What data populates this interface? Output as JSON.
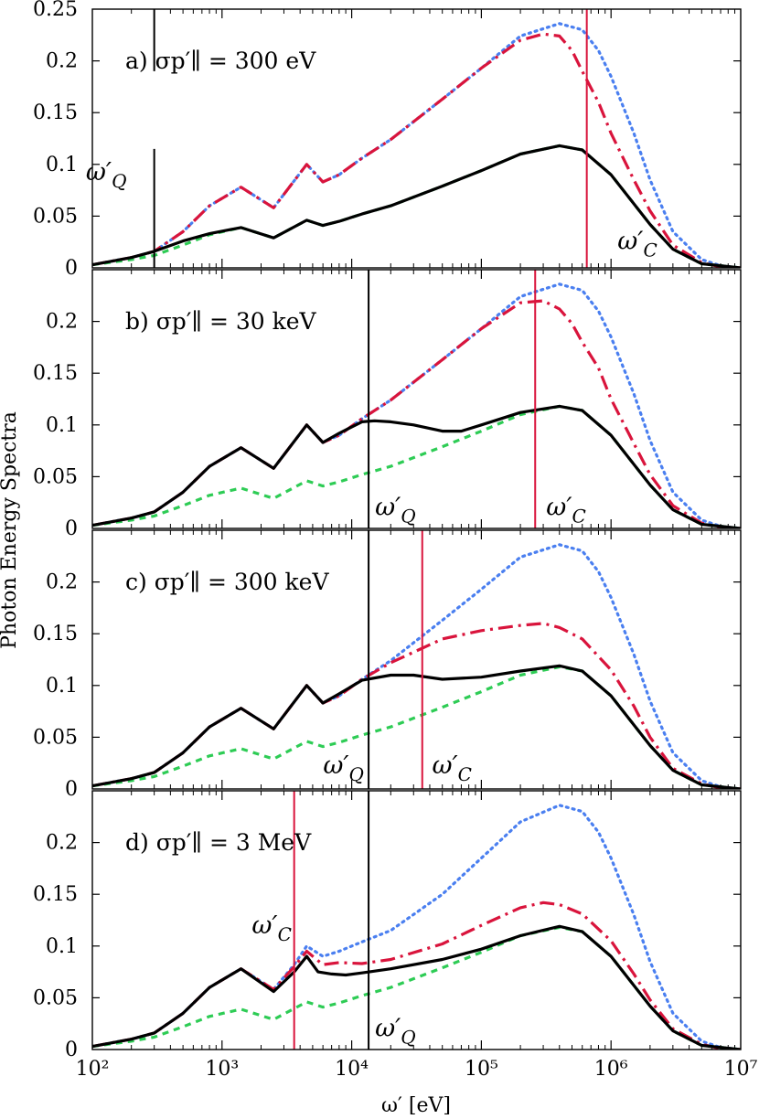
{
  "figure": {
    "ylabel": "Photon Energy Spectra",
    "xlabel": "ω′ [eV]"
  },
  "colors": {
    "black_solid": "#000000",
    "green_dashed": "#2ecc55",
    "blue_dotted": "#4a7ff0",
    "red_dashdot": "#d9143c",
    "omega_Q_line": "#000000",
    "omega_C_line": "#d9143c"
  },
  "chart_data": [
    {
      "type": "line",
      "panel_label": "a) σp′∥ = 300 eV",
      "xscale": "log",
      "xlim": [
        100,
        10000000
      ],
      "ylim": [
        0,
        0.25
      ],
      "yticks": [
        "0",
        "0.05",
        "0.1",
        "0.15",
        "0.2",
        "0.25"
      ],
      "xticks": [
        "10²",
        "10³",
        "10⁴",
        "10⁵",
        "10⁶",
        "10⁷"
      ],
      "omega_Q": 300,
      "omega_C": 650000,
      "omega_Q_label": "ω′Q",
      "omega_C_label": "ω′C",
      "omega_Q_label_pos": [
        1.95,
        0.085
      ],
      "omega_C_label_pos": [
        6.05,
        0.018
      ],
      "omega_Q_line_range": [
        0,
        0.25
      ],
      "label_gap": [
        0.19,
        0.115
      ],
      "series": [
        {
          "style": "blue_dotted",
          "x": [
            100,
            200,
            300,
            500,
            800,
            1400,
            2500,
            4500,
            6000,
            8000,
            12000,
            20000,
            50000,
            100000,
            200000,
            400000,
            600000,
            800000,
            1000000,
            1500000,
            2000000,
            3000000,
            5000000,
            7000000,
            10000000
          ],
          "y": [
            0.003,
            0.01,
            0.016,
            0.035,
            0.06,
            0.078,
            0.058,
            0.1,
            0.083,
            0.09,
            0.106,
            0.124,
            0.163,
            0.193,
            0.224,
            0.236,
            0.23,
            0.21,
            0.185,
            0.13,
            0.085,
            0.035,
            0.008,
            0.002,
            0.0
          ]
        },
        {
          "style": "red_dashdot",
          "x": [
            100,
            200,
            300,
            500,
            800,
            1400,
            2500,
            4500,
            6000,
            8000,
            12000,
            20000,
            50000,
            100000,
            200000,
            300000,
            400000,
            500000,
            600000,
            800000,
            1000000,
            1500000,
            2000000,
            3000000,
            5000000,
            7000000,
            10000000
          ],
          "y": [
            0.003,
            0.01,
            0.016,
            0.035,
            0.06,
            0.078,
            0.058,
            0.1,
            0.083,
            0.09,
            0.106,
            0.124,
            0.163,
            0.193,
            0.22,
            0.226,
            0.224,
            0.21,
            0.19,
            0.16,
            0.13,
            0.085,
            0.055,
            0.022,
            0.005,
            0.001,
            0.0
          ]
        },
        {
          "style": "green_dashed",
          "x": [
            100,
            200,
            300,
            500,
            800,
            1400,
            2500,
            4500,
            6000,
            8000,
            12000,
            20000,
            50000,
            100000,
            200000,
            400000,
            600000,
            1000000,
            2000000,
            3000000,
            5000000,
            10000000
          ],
          "y": [
            0.003,
            0.008,
            0.012,
            0.022,
            0.032,
            0.039,
            0.029,
            0.046,
            0.041,
            0.045,
            0.052,
            0.06,
            0.079,
            0.094,
            0.11,
            0.118,
            0.114,
            0.09,
            0.042,
            0.018,
            0.004,
            0.0
          ]
        },
        {
          "style": "black_solid",
          "x": [
            100,
            200,
            300,
            500,
            800,
            1400,
            2500,
            4500,
            6000,
            8000,
            12000,
            20000,
            50000,
            100000,
            200000,
            400000,
            600000,
            1000000,
            2000000,
            3000000,
            5000000,
            10000000
          ],
          "y": [
            0.003,
            0.01,
            0.016,
            0.026,
            0.033,
            0.039,
            0.029,
            0.046,
            0.041,
            0.045,
            0.052,
            0.06,
            0.079,
            0.094,
            0.11,
            0.118,
            0.114,
            0.09,
            0.042,
            0.018,
            0.004,
            0.0
          ]
        }
      ]
    },
    {
      "type": "line",
      "panel_label": "b) σp′∥ = 30 keV",
      "xscale": "log",
      "xlim": [
        100,
        10000000
      ],
      "ylim": [
        0,
        0.25
      ],
      "yticks": [
        "0",
        "0.05",
        "0.1",
        "0.15",
        "0.2",
        ""
      ],
      "omega_Q": 13500,
      "omega_C": 260000,
      "omega_Q_label": "ω′Q",
      "omega_C_label": "ω′C",
      "omega_Q_label_pos": [
        4.18,
        0.013
      ],
      "omega_C_label_pos": [
        5.5,
        0.013
      ],
      "omega_Q_line_range": [
        0,
        0.25
      ],
      "label_gap": null,
      "series": [
        {
          "style": "blue_dotted",
          "x": [
            100,
            200,
            300,
            500,
            800,
            1400,
            2500,
            4500,
            6000,
            8000,
            12000,
            20000,
            50000,
            100000,
            200000,
            400000,
            600000,
            800000,
            1000000,
            1500000,
            2000000,
            3000000,
            5000000,
            7000000,
            10000000
          ],
          "y": [
            0.003,
            0.01,
            0.016,
            0.035,
            0.06,
            0.078,
            0.058,
            0.1,
            0.083,
            0.09,
            0.106,
            0.124,
            0.163,
            0.193,
            0.224,
            0.236,
            0.23,
            0.21,
            0.185,
            0.13,
            0.085,
            0.035,
            0.008,
            0.002,
            0.0
          ]
        },
        {
          "style": "red_dashdot",
          "x": [
            100,
            200,
            300,
            500,
            800,
            1400,
            2500,
            4500,
            6000,
            8000,
            12000,
            20000,
            50000,
            100000,
            200000,
            300000,
            400000,
            500000,
            600000,
            800000,
            1000000,
            1500000,
            2000000,
            3000000,
            5000000,
            7000000,
            10000000
          ],
          "y": [
            0.003,
            0.01,
            0.016,
            0.035,
            0.06,
            0.078,
            0.058,
            0.1,
            0.083,
            0.09,
            0.106,
            0.124,
            0.163,
            0.193,
            0.218,
            0.22,
            0.212,
            0.198,
            0.18,
            0.155,
            0.125,
            0.082,
            0.052,
            0.022,
            0.005,
            0.001,
            0.0
          ]
        },
        {
          "style": "green_dashed",
          "x": [
            100,
            200,
            300,
            500,
            800,
            1400,
            2500,
            4500,
            6000,
            8000,
            12000,
            20000,
            50000,
            100000,
            200000,
            400000,
            600000,
            1000000,
            2000000,
            3000000,
            5000000,
            10000000
          ],
          "y": [
            0.003,
            0.008,
            0.012,
            0.022,
            0.032,
            0.039,
            0.029,
            0.046,
            0.041,
            0.045,
            0.052,
            0.06,
            0.079,
            0.094,
            0.11,
            0.118,
            0.114,
            0.09,
            0.042,
            0.018,
            0.004,
            0.0
          ]
        },
        {
          "style": "black_solid",
          "x": [
            100,
            200,
            300,
            500,
            800,
            1400,
            2500,
            4500,
            6000,
            8000,
            12000,
            15000,
            20000,
            30000,
            50000,
            70000,
            100000,
            200000,
            400000,
            600000,
            1000000,
            2000000,
            3000000,
            5000000,
            10000000
          ],
          "y": [
            0.003,
            0.01,
            0.016,
            0.035,
            0.06,
            0.078,
            0.058,
            0.1,
            0.083,
            0.092,
            0.103,
            0.104,
            0.103,
            0.1,
            0.094,
            0.094,
            0.1,
            0.112,
            0.118,
            0.114,
            0.09,
            0.042,
            0.018,
            0.004,
            0.0
          ]
        }
      ]
    },
    {
      "type": "line",
      "panel_label": "c) σp′∥ = 300 keV",
      "xscale": "log",
      "xlim": [
        100,
        10000000
      ],
      "ylim": [
        0,
        0.25
      ],
      "yticks": [
        "0",
        "0.05",
        "0.1",
        "0.15",
        "0.2",
        ""
      ],
      "omega_Q": 13500,
      "omega_C": 35000,
      "omega_Q_label": "ω′Q",
      "omega_C_label": "ω′C",
      "omega_Q_label_pos": [
        3.78,
        0.015
      ],
      "omega_C_label_pos": [
        4.62,
        0.015
      ],
      "omega_Q_line_range": [
        0,
        0.25
      ],
      "label_gap": null,
      "series": [
        {
          "style": "blue_dotted",
          "x": [
            100,
            200,
            300,
            500,
            800,
            1400,
            2500,
            4500,
            6000,
            8000,
            12000,
            20000,
            50000,
            100000,
            200000,
            400000,
            600000,
            800000,
            1000000,
            1500000,
            2000000,
            3000000,
            5000000,
            7000000,
            10000000
          ],
          "y": [
            0.003,
            0.01,
            0.016,
            0.035,
            0.06,
            0.078,
            0.058,
            0.1,
            0.083,
            0.09,
            0.106,
            0.124,
            0.163,
            0.193,
            0.224,
            0.236,
            0.23,
            0.21,
            0.185,
            0.13,
            0.085,
            0.035,
            0.008,
            0.002,
            0.0
          ]
        },
        {
          "style": "red_dashdot",
          "x": [
            100,
            200,
            300,
            500,
            800,
            1400,
            2500,
            4500,
            6000,
            8000,
            12000,
            20000,
            50000,
            100000,
            200000,
            300000,
            400000,
            600000,
            1000000,
            1500000,
            2000000,
            3000000,
            5000000,
            7000000,
            10000000
          ],
          "y": [
            0.003,
            0.01,
            0.016,
            0.035,
            0.06,
            0.078,
            0.058,
            0.1,
            0.083,
            0.09,
            0.106,
            0.122,
            0.145,
            0.153,
            0.158,
            0.16,
            0.156,
            0.145,
            0.115,
            0.08,
            0.05,
            0.02,
            0.005,
            0.001,
            0.0
          ]
        },
        {
          "style": "green_dashed",
          "x": [
            100,
            200,
            300,
            500,
            800,
            1400,
            2500,
            4500,
            6000,
            8000,
            12000,
            20000,
            50000,
            100000,
            200000,
            400000,
            600000,
            1000000,
            2000000,
            3000000,
            5000000,
            10000000
          ],
          "y": [
            0.003,
            0.008,
            0.012,
            0.022,
            0.032,
            0.039,
            0.029,
            0.046,
            0.041,
            0.045,
            0.052,
            0.06,
            0.079,
            0.094,
            0.11,
            0.118,
            0.114,
            0.09,
            0.042,
            0.018,
            0.004,
            0.0
          ]
        },
        {
          "style": "black_solid",
          "x": [
            100,
            200,
            300,
            500,
            800,
            1400,
            2500,
            4500,
            6000,
            8000,
            12000,
            20000,
            30000,
            50000,
            70000,
            100000,
            200000,
            400000,
            600000,
            1000000,
            2000000,
            3000000,
            5000000,
            10000000
          ],
          "y": [
            0.003,
            0.01,
            0.016,
            0.035,
            0.06,
            0.078,
            0.058,
            0.1,
            0.083,
            0.092,
            0.105,
            0.11,
            0.11,
            0.106,
            0.107,
            0.108,
            0.114,
            0.119,
            0.114,
            0.09,
            0.042,
            0.018,
            0.004,
            0.0
          ]
        }
      ]
    },
    {
      "type": "line",
      "panel_label": "d) σp′∥ = 3 MeV",
      "xscale": "log",
      "xlim": [
        100,
        10000000
      ],
      "ylim": [
        0,
        0.25
      ],
      "yticks": [
        "0",
        "0.05",
        "0.1",
        "0.15",
        "0.2",
        ""
      ],
      "xticks": [
        "10²",
        "10³",
        "10⁴",
        "10⁵",
        "10⁶",
        "10⁷"
      ],
      "omega_Q": 13500,
      "omega_C": 3600,
      "omega_Q_label": "ω′Q",
      "omega_C_label": "ω′C",
      "omega_Q_label_pos": [
        4.18,
        0.013
      ],
      "omega_C_label_pos": [
        3.23,
        0.112
      ],
      "omega_Q_line_range": [
        0,
        0.25
      ],
      "label_gap": null,
      "series": [
        {
          "style": "blue_dotted",
          "x": [
            100,
            200,
            300,
            500,
            800,
            1400,
            2500,
            3600,
            4500,
            6000,
            8000,
            12000,
            20000,
            50000,
            100000,
            200000,
            400000,
            600000,
            800000,
            1000000,
            1500000,
            2000000,
            3000000,
            5000000,
            7000000,
            10000000
          ],
          "y": [
            0.003,
            0.01,
            0.016,
            0.035,
            0.06,
            0.078,
            0.058,
            0.082,
            0.1,
            0.09,
            0.095,
            0.104,
            0.115,
            0.15,
            0.185,
            0.22,
            0.236,
            0.23,
            0.21,
            0.185,
            0.13,
            0.085,
            0.035,
            0.008,
            0.002,
            0.0
          ]
        },
        {
          "style": "red_dashdot",
          "x": [
            100,
            200,
            300,
            500,
            800,
            1400,
            2500,
            3600,
            4500,
            6000,
            8000,
            12000,
            20000,
            50000,
            100000,
            200000,
            300000,
            400000,
            600000,
            1000000,
            1500000,
            2000000,
            3000000,
            5000000,
            7000000,
            10000000
          ],
          "y": [
            0.003,
            0.01,
            0.016,
            0.035,
            0.06,
            0.078,
            0.058,
            0.08,
            0.095,
            0.082,
            0.084,
            0.083,
            0.087,
            0.102,
            0.12,
            0.137,
            0.142,
            0.14,
            0.131,
            0.105,
            0.073,
            0.048,
            0.02,
            0.005,
            0.001,
            0.0
          ]
        },
        {
          "style": "green_dashed",
          "x": [
            100,
            200,
            300,
            500,
            800,
            1400,
            2500,
            4500,
            6000,
            8000,
            12000,
            20000,
            50000,
            100000,
            200000,
            400000,
            600000,
            1000000,
            2000000,
            3000000,
            5000000,
            10000000
          ],
          "y": [
            0.003,
            0.008,
            0.012,
            0.022,
            0.032,
            0.039,
            0.029,
            0.046,
            0.041,
            0.045,
            0.052,
            0.06,
            0.079,
            0.094,
            0.11,
            0.118,
            0.114,
            0.09,
            0.042,
            0.018,
            0.004,
            0.0
          ]
        },
        {
          "style": "black_solid",
          "x": [
            100,
            200,
            300,
            500,
            800,
            1400,
            2500,
            3600,
            4500,
            5500,
            7000,
            9000,
            12000,
            20000,
            50000,
            100000,
            200000,
            400000,
            600000,
            1000000,
            2000000,
            3000000,
            5000000,
            10000000
          ],
          "y": [
            0.003,
            0.01,
            0.016,
            0.035,
            0.06,
            0.078,
            0.056,
            0.075,
            0.09,
            0.075,
            0.073,
            0.072,
            0.074,
            0.078,
            0.087,
            0.097,
            0.11,
            0.119,
            0.114,
            0.09,
            0.042,
            0.018,
            0.004,
            0.0
          ]
        }
      ]
    }
  ]
}
